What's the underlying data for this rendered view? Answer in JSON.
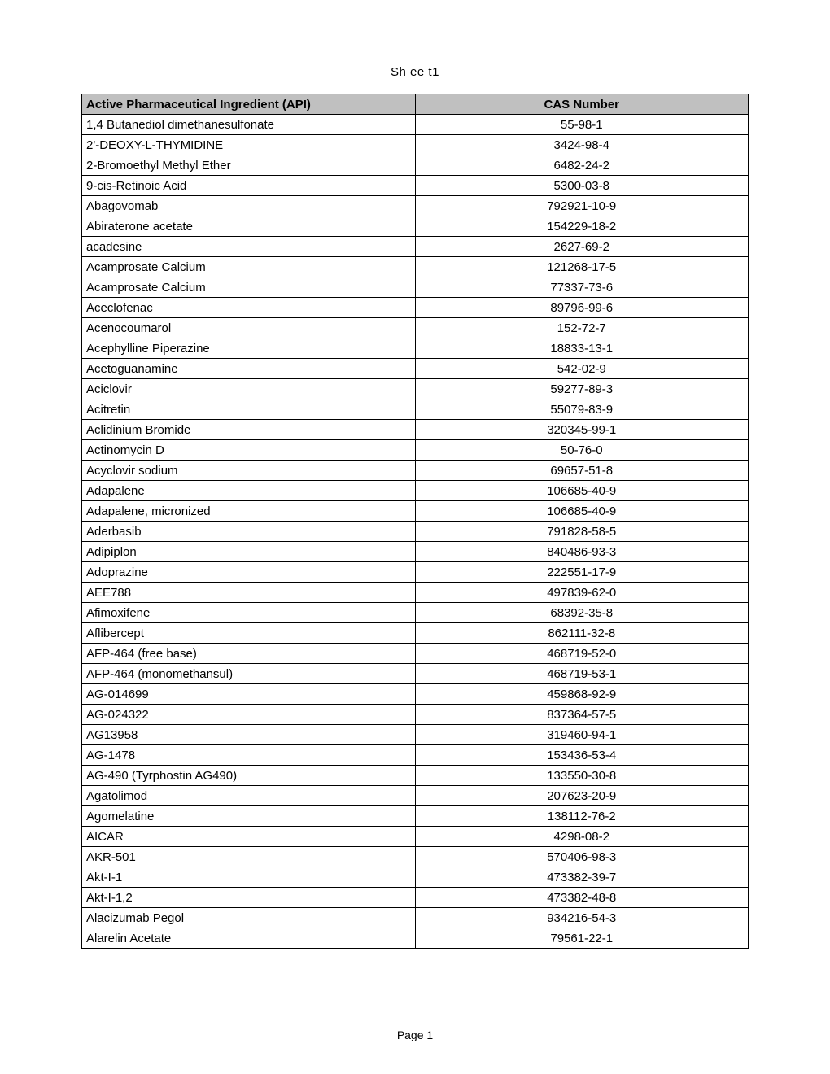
{
  "sheet_title": "Sh ee t1",
  "page_number": "Page 1",
  "table": {
    "columns": [
      "Active Pharmaceutical Ingredient (API)",
      "CAS Number"
    ],
    "column_align": [
      "left",
      "center"
    ],
    "header_bg": "#c0c0c0",
    "border_color": "#000000",
    "rows": [
      [
        "1,4 Butanediol dimethanesulfonate",
        "55-98-1"
      ],
      [
        "2'-DEOXY-L-THYMIDINE",
        "3424-98-4"
      ],
      [
        "2-Bromoethyl Methyl Ether",
        "6482-24-2"
      ],
      [
        "9-cis-Retinoic Acid",
        "5300-03-8"
      ],
      [
        "Abagovomab",
        "792921-10-9"
      ],
      [
        "Abiraterone acetate",
        "154229-18-2"
      ],
      [
        "acadesine",
        "2627-69-2"
      ],
      [
        "Acamprosate Calcium",
        "121268-17-5"
      ],
      [
        "Acamprosate Calcium",
        "77337-73-6"
      ],
      [
        "Aceclofenac",
        "89796-99-6"
      ],
      [
        "Acenocoumarol",
        "152-72-7"
      ],
      [
        "Acephylline Piperazine",
        "18833-13-1"
      ],
      [
        "Acetoguanamine",
        "542-02-9"
      ],
      [
        "Aciclovir",
        "59277-89-3"
      ],
      [
        "Acitretin",
        "55079-83-9"
      ],
      [
        "Aclidinium Bromide",
        "320345-99-1"
      ],
      [
        "Actinomycin D",
        "50-76-0"
      ],
      [
        "Acyclovir sodium",
        "69657-51-8"
      ],
      [
        "Adapalene",
        "106685-40-9"
      ],
      [
        "Adapalene, micronized",
        "106685-40-9"
      ],
      [
        "Aderbasib",
        "791828-58-5"
      ],
      [
        "Adipiplon",
        "840486-93-3"
      ],
      [
        "Adoprazine",
        "222551-17-9"
      ],
      [
        "AEE788",
        "497839-62-0"
      ],
      [
        "Afimoxifene",
        "68392-35-8"
      ],
      [
        "Aflibercept",
        "862111-32-8"
      ],
      [
        "AFP-464  (free base)",
        "468719-52-0"
      ],
      [
        "AFP-464 (monomethansul)",
        "468719-53-1"
      ],
      [
        "AG-014699",
        "459868-92-9"
      ],
      [
        "AG-024322",
        "837364-57-5"
      ],
      [
        "AG13958",
        "319460-94-1"
      ],
      [
        "AG-1478",
        "153436-53-4"
      ],
      [
        "AG-490 (Tyrphostin AG490)",
        "133550-30-8"
      ],
      [
        "Agatolimod",
        "207623-20-9"
      ],
      [
        "Agomelatine",
        "138112-76-2"
      ],
      [
        "AICAR",
        "4298-08-2"
      ],
      [
        "AKR-501",
        "570406-98-3"
      ],
      [
        "Akt-I-1",
        "473382-39-7"
      ],
      [
        "Akt-I-1,2",
        "473382-48-8"
      ],
      [
        "Alacizumab Pegol",
        "934216-54-3"
      ],
      [
        "Alarelin Acetate",
        "79561-22-1"
      ]
    ]
  }
}
